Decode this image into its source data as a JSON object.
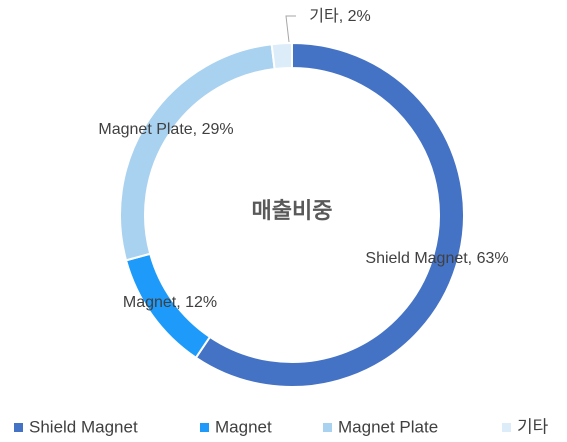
{
  "chart_data": {
    "type": "donut",
    "title": "매출비중",
    "categories": [
      "Shield Magnet",
      "Magnet",
      "Magnet Plate",
      "기타"
    ],
    "values": [
      63,
      12,
      29,
      2
    ],
    "value_labels": [
      "Shield Magnet, 63%",
      "Magnet, 12%",
      "Magnet Plate, 29%",
      "기타, 2%"
    ],
    "colors": [
      "#4472c4",
      "#1e9bfa",
      "#a9d1f0",
      "#ddecf9"
    ],
    "legend": "bottom"
  }
}
